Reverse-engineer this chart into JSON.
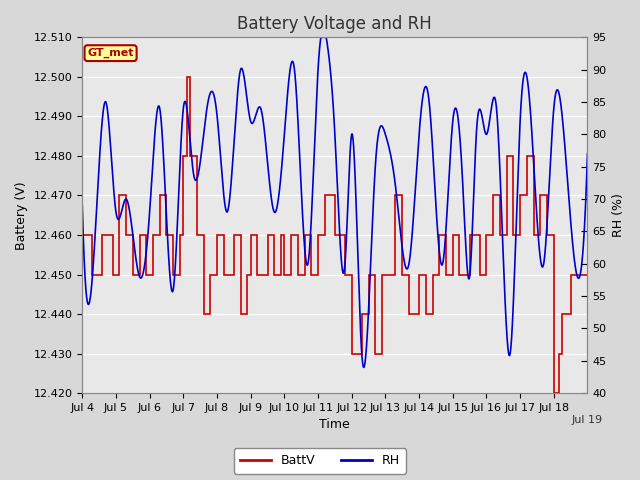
{
  "title": "Battery Voltage and RH",
  "xlabel": "Time",
  "ylabel_left": "Battery (V)",
  "ylabel_right": "RH (%)",
  "ylim_left": [
    12.42,
    12.51
  ],
  "ylim_right": [
    40,
    95
  ],
  "x_tick_labels": [
    "Jul 4",
    "Jul 5",
    "Jul 6",
    "Jul 7",
    "Jul 8",
    "Jul 9",
    "Jul 10",
    "Jul 11",
    "Jul 12",
    "Jul 13",
    "Jul 14",
    "Jul 15",
    "Jul 16",
    "Jul 17",
    "Jul 18",
    "Jul 19"
  ],
  "watermark_text": "GT_met",
  "watermark_bg": "#FFFF99",
  "watermark_border": "#AA0000",
  "fig_bg_color": "#D8D8D8",
  "plot_bg": "#E8E8E8",
  "batt_color": "#CC0000",
  "rh_color": "#0000CC",
  "legend_batt": "BattV",
  "legend_rh": "RH",
  "title_fontsize": 12,
  "axis_fontsize": 9,
  "tick_fontsize": 8,
  "batt_linewidth": 1.2,
  "rh_linewidth": 1.2
}
